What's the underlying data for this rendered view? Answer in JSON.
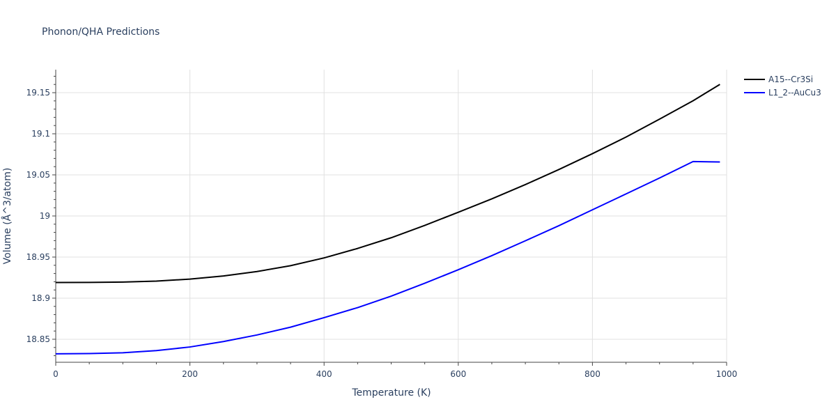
{
  "chart_data": {
    "type": "line",
    "title": "Phonon/QHA Predictions",
    "xlabel": "Temperature (K)",
    "ylabel": "Volume (Å^3/atom)",
    "xlim": [
      0,
      1000
    ],
    "ylim": [
      18.822,
      19.178
    ],
    "x_ticks": [
      0,
      200,
      400,
      600,
      800,
      1000
    ],
    "x_tick_labels": [
      "0",
      "200",
      "400",
      "600",
      "800",
      "1000"
    ],
    "y_ticks": [
      18.85,
      18.9,
      18.95,
      19.0,
      19.05,
      19.1,
      19.15
    ],
    "y_tick_labels": [
      "18.85",
      "18.9",
      "18.95",
      "19",
      "19.05",
      "19.1",
      "19.15"
    ],
    "grid": true,
    "legend_position": "top-right",
    "series": [
      {
        "name": "A15--Cr3Si",
        "color": "#000000",
        "x": [
          0,
          50,
          100,
          150,
          200,
          250,
          300,
          350,
          400,
          450,
          500,
          550,
          600,
          650,
          700,
          750,
          800,
          850,
          900,
          950,
          990
        ],
        "y": [
          18.919,
          18.9192,
          18.9196,
          18.9208,
          18.9232,
          18.927,
          18.9324,
          18.9395,
          18.949,
          18.9605,
          18.9735,
          18.9885,
          19.0045,
          19.0208,
          19.0382,
          19.0565,
          19.0758,
          19.096,
          19.1178,
          19.1402,
          19.1601
        ]
      },
      {
        "name": "L1_2--AuCu3",
        "color": "#0000ff",
        "x": [
          0,
          50,
          100,
          150,
          200,
          250,
          300,
          350,
          400,
          450,
          500,
          550,
          600,
          650,
          700,
          750,
          800,
          850,
          900,
          950,
          990
        ],
        "y": [
          18.8323,
          18.8326,
          18.8335,
          18.8362,
          18.8406,
          18.8472,
          18.8552,
          18.8647,
          18.8763,
          18.8885,
          18.9025,
          18.9181,
          18.9346,
          18.9517,
          18.9698,
          18.9882,
          19.0075,
          19.0268,
          19.0462,
          19.0662,
          19.0657
        ]
      }
    ]
  }
}
